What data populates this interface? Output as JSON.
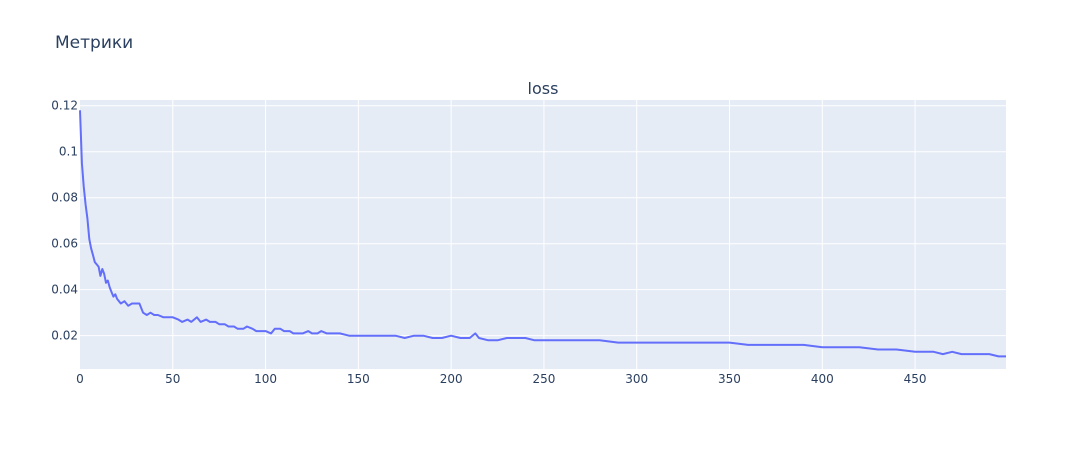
{
  "page": {
    "title": "Метрики"
  },
  "colors": {
    "plot_bg": "#e5ecf6",
    "grid": "#ffffff",
    "line": "#636efa",
    "text": "#2a3f5f"
  },
  "chart_data": {
    "type": "line",
    "title": "loss",
    "xlabel": "",
    "ylabel": "",
    "xlim": [
      0,
      499
    ],
    "ylim": [
      0.0055,
      0.1225
    ],
    "grid": true,
    "xticks": [
      0,
      50,
      100,
      150,
      200,
      250,
      300,
      350,
      400,
      450
    ],
    "xtick_labels": [
      "0",
      "50",
      "100",
      "150",
      "200",
      "250",
      "300",
      "350",
      "400",
      "450"
    ],
    "yticks": [
      0.02,
      0.04,
      0.06,
      0.08,
      0.1,
      0.12
    ],
    "ytick_labels": [
      "0.02",
      "0.04",
      "0.06",
      "0.08",
      "0.1",
      "0.12"
    ],
    "series": [
      {
        "x": [
          0,
          1,
          2,
          3,
          4,
          5,
          6,
          7,
          8,
          9,
          10,
          11,
          12,
          13,
          14,
          15,
          16,
          17,
          18,
          19,
          20,
          22,
          24,
          26,
          28,
          30,
          32,
          34,
          36,
          38,
          40,
          42,
          45,
          48,
          50,
          53,
          55,
          58,
          60,
          63,
          65,
          68,
          70,
          73,
          75,
          78,
          80,
          83,
          85,
          88,
          90,
          93,
          95,
          98,
          100,
          103,
          105,
          108,
          110,
          113,
          115,
          118,
          120,
          123,
          125,
          128,
          130,
          133,
          135,
          140,
          145,
          150,
          155,
          160,
          165,
          170,
          175,
          180,
          185,
          190,
          195,
          200,
          205,
          210,
          213,
          215,
          220,
          225,
          230,
          240,
          245,
          250,
          260,
          270,
          280,
          290,
          300,
          310,
          320,
          330,
          340,
          350,
          360,
          370,
          380,
          390,
          400,
          410,
          420,
          430,
          440,
          450,
          460,
          465,
          470,
          475,
          480,
          485,
          490,
          495,
          499
        ],
        "y": [
          0.118,
          0.095,
          0.085,
          0.077,
          0.071,
          0.062,
          0.058,
          0.055,
          0.052,
          0.051,
          0.05,
          0.046,
          0.049,
          0.047,
          0.043,
          0.044,
          0.041,
          0.039,
          0.037,
          0.038,
          0.036,
          0.034,
          0.035,
          0.033,
          0.034,
          0.034,
          0.034,
          0.03,
          0.029,
          0.03,
          0.029,
          0.029,
          0.028,
          0.028,
          0.028,
          0.027,
          0.026,
          0.027,
          0.026,
          0.028,
          0.026,
          0.027,
          0.026,
          0.026,
          0.025,
          0.025,
          0.024,
          0.024,
          0.023,
          0.023,
          0.024,
          0.023,
          0.022,
          0.022,
          0.022,
          0.021,
          0.023,
          0.023,
          0.022,
          0.022,
          0.021,
          0.021,
          0.021,
          0.022,
          0.021,
          0.021,
          0.022,
          0.021,
          0.021,
          0.021,
          0.02,
          0.02,
          0.02,
          0.02,
          0.02,
          0.02,
          0.019,
          0.02,
          0.02,
          0.019,
          0.019,
          0.02,
          0.019,
          0.019,
          0.021,
          0.019,
          0.018,
          0.018,
          0.019,
          0.019,
          0.018,
          0.018,
          0.018,
          0.018,
          0.018,
          0.017,
          0.017,
          0.017,
          0.017,
          0.017,
          0.017,
          0.017,
          0.016,
          0.016,
          0.016,
          0.016,
          0.015,
          0.015,
          0.015,
          0.014,
          0.014,
          0.013,
          0.013,
          0.012,
          0.013,
          0.012,
          0.012,
          0.012,
          0.012,
          0.011,
          0.011
        ]
      }
    ]
  }
}
